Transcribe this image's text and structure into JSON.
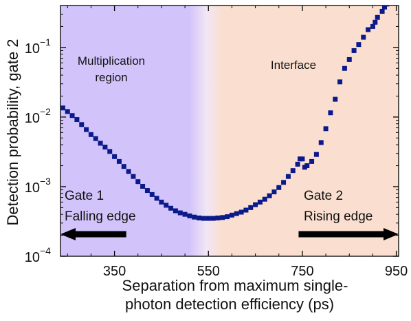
{
  "colors": {
    "multiplication_region": "#d2c4fb",
    "interface_region": "#fadfd0",
    "marker": "#0b1a8a",
    "arrow": "#000000"
  },
  "chart_data": {
    "type": "scatter",
    "x_scale": "linear",
    "y_scale": "log",
    "xlim": [
      235,
      955
    ],
    "ylim": [
      0.0001,
      0.4
    ],
    "xticks": [
      {
        "value": 350,
        "label": "350"
      },
      {
        "value": 550,
        "label": "550"
      },
      {
        "value": 750,
        "label": "750"
      },
      {
        "value": 950,
        "label": "950"
      }
    ],
    "yticks": [
      {
        "value": 0.0001,
        "base": "10",
        "exp": "−4"
      },
      {
        "value": 0.001,
        "base": "10",
        "exp": "−3"
      },
      {
        "value": 0.01,
        "base": "10",
        "exp": "−2"
      },
      {
        "value": 0.1,
        "base": "10",
        "exp": "−1"
      }
    ],
    "xlabel_line1": "Separation from maximum single-",
    "xlabel_line2": "photon detection efficiency (ps)",
    "ylabel": "Detection probability, gate 2",
    "regions": [
      {
        "label_lines": [
          "Multiplication",
          "region"
        ],
        "x_from": 235,
        "x_to": 510
      },
      {
        "label_lines": [
          "Interface"
        ],
        "x_from": 580,
        "x_to": 955
      }
    ],
    "annotations": [
      {
        "lines": [
          "Gate 1",
          "Falling edge"
        ],
        "arrow_from": 375,
        "arrow_to": 235,
        "direction": "left"
      },
      {
        "lines": [
          "Gate 2",
          "Rising edge"
        ],
        "arrow_from": 742,
        "arrow_to": 955,
        "direction": "right"
      }
    ],
    "series": [
      {
        "marker": "square",
        "points": [
          [
            240,
            0.0135
          ],
          [
            250,
            0.012
          ],
          [
            260,
            0.0105
          ],
          [
            270,
            0.0092
          ],
          [
            280,
            0.0078
          ],
          [
            290,
            0.0066
          ],
          [
            300,
            0.0056
          ],
          [
            310,
            0.0049
          ],
          [
            320,
            0.0042
          ],
          [
            330,
            0.0037
          ],
          [
            340,
            0.0032
          ],
          [
            350,
            0.0027
          ],
          [
            360,
            0.0023
          ],
          [
            370,
            0.00195
          ],
          [
            380,
            0.00165
          ],
          [
            390,
            0.0014
          ],
          [
            400,
            0.00118
          ],
          [
            410,
            0.00101
          ],
          [
            420,
            0.00088
          ],
          [
            430,
            0.00077
          ],
          [
            440,
            0.00068
          ],
          [
            450,
            0.0006
          ],
          [
            460,
            0.00054
          ],
          [
            470,
            0.00049
          ],
          [
            480,
            0.00045
          ],
          [
            490,
            0.00042
          ],
          [
            500,
            0.0004
          ],
          [
            510,
            0.00038
          ],
          [
            520,
            0.000365
          ],
          [
            530,
            0.000355
          ],
          [
            540,
            0.00035
          ],
          [
            550,
            0.00035
          ],
          [
            560,
            0.00035
          ],
          [
            570,
            0.000355
          ],
          [
            580,
            0.00036
          ],
          [
            590,
            0.00037
          ],
          [
            600,
            0.00039
          ],
          [
            610,
            0.00041
          ],
          [
            620,
            0.00043
          ],
          [
            630,
            0.00046
          ],
          [
            640,
            0.0005
          ],
          [
            650,
            0.00055
          ],
          [
            660,
            0.0006
          ],
          [
            670,
            0.00066
          ],
          [
            680,
            0.00074
          ],
          [
            690,
            0.00084
          ],
          [
            700,
            0.00097
          ],
          [
            710,
            0.00115
          ],
          [
            720,
            0.0014
          ],
          [
            730,
            0.0017
          ],
          [
            740,
            0.0021
          ],
          [
            745,
            0.0025
          ],
          [
            750,
            0.0025
          ],
          [
            755,
            0.0019
          ],
          [
            760,
            0.002
          ],
          [
            770,
            0.0023
          ],
          [
            780,
            0.0029
          ],
          [
            790,
            0.0043
          ],
          [
            800,
            0.0068
          ],
          [
            810,
            0.0115
          ],
          [
            820,
            0.018
          ],
          [
            830,
            0.032
          ],
          [
            840,
            0.05
          ],
          [
            850,
            0.067
          ],
          [
            860,
            0.09
          ],
          [
            870,
            0.11
          ],
          [
            880,
            0.14
          ],
          [
            890,
            0.18
          ],
          [
            900,
            0.2
          ],
          [
            905,
            0.23
          ],
          [
            910,
            0.27
          ],
          [
            920,
            0.33
          ],
          [
            925,
            0.38
          ],
          [
            930,
            0.42
          ]
        ]
      }
    ]
  }
}
